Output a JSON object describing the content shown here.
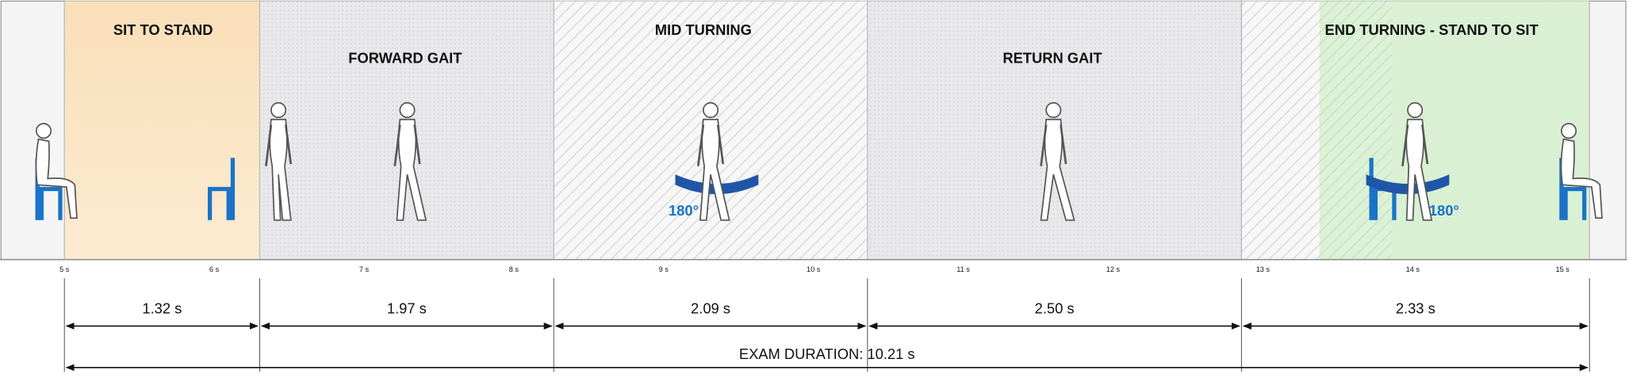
{
  "phases": [
    {
      "label": "SIT TO STAND",
      "duration": "1.32 s"
    },
    {
      "label": "FORWARD GAIT",
      "duration": "1.97 s"
    },
    {
      "label": "MID TURNING",
      "duration": "2.09 s"
    },
    {
      "label": "RETURN GAIT",
      "duration": "2.50 s"
    },
    {
      "label": "END TURNING - STAND TO SIT",
      "duration": "2.33 s"
    }
  ],
  "time_axis": {
    "ticks": [
      "5 s",
      "6 s",
      "7 s",
      "8 s",
      "9 s",
      "10 s",
      "11 s",
      "12 s",
      "13 s",
      "14 s",
      "15 s"
    ]
  },
  "turn_labels": [
    "180°",
    "180°"
  ],
  "exam_duration": "EXAM DURATION: 10.21 s"
}
